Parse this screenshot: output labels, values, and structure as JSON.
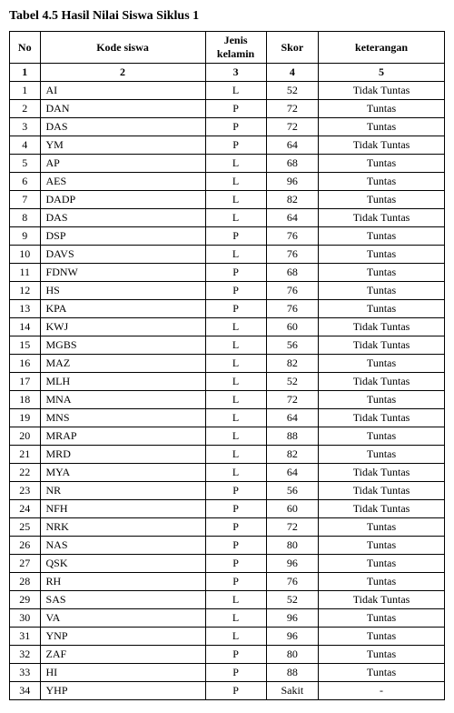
{
  "title": "Tabel 4.5 Hasil Nilai Siswa Siklus 1",
  "headers": {
    "no": "No",
    "kode": "Kode siswa",
    "jk": "Jenis kelamin",
    "skor": "Skor",
    "ket": "keterangan"
  },
  "num_row": {
    "c1": "1",
    "c2": "2",
    "c3": "3",
    "c4": "4",
    "c5": "5"
  },
  "rows": [
    {
      "no": "1",
      "kode": "AI",
      "jk": "L",
      "skor": "52",
      "ket": "Tidak Tuntas"
    },
    {
      "no": "2",
      "kode": "DAN",
      "jk": "P",
      "skor": "72",
      "ket": "Tuntas"
    },
    {
      "no": "3",
      "kode": "DAS",
      "jk": "P",
      "skor": "72",
      "ket": "Tuntas"
    },
    {
      "no": "4",
      "kode": "YM",
      "jk": "P",
      "skor": "64",
      "ket": "Tidak Tuntas"
    },
    {
      "no": "5",
      "kode": "AP",
      "jk": "L",
      "skor": "68",
      "ket": "Tuntas"
    },
    {
      "no": "6",
      "kode": "AES",
      "jk": "L",
      "skor": "96",
      "ket": "Tuntas"
    },
    {
      "no": "7",
      "kode": "DADP",
      "jk": "L",
      "skor": "82",
      "ket": "Tuntas"
    },
    {
      "no": "8",
      "kode": "DAS",
      "jk": "L",
      "skor": "64",
      "ket": "Tidak Tuntas"
    },
    {
      "no": "9",
      "kode": "DSP",
      "jk": "P",
      "skor": "76",
      "ket": "Tuntas"
    },
    {
      "no": "10",
      "kode": "DAVS",
      "jk": "L",
      "skor": "76",
      "ket": "Tuntas"
    },
    {
      "no": "11",
      "kode": "FDNW",
      "jk": "P",
      "skor": "68",
      "ket": "Tuntas"
    },
    {
      "no": "12",
      "kode": "HS",
      "jk": "P",
      "skor": "76",
      "ket": "Tuntas"
    },
    {
      "no": "13",
      "kode": "KPA",
      "jk": "P",
      "skor": "76",
      "ket": "Tuntas"
    },
    {
      "no": "14",
      "kode": "KWJ",
      "jk": "L",
      "skor": "60",
      "ket": "Tidak Tuntas"
    },
    {
      "no": "15",
      "kode": "MGBS",
      "jk": "L",
      "skor": "56",
      "ket": "Tidak Tuntas"
    },
    {
      "no": "16",
      "kode": "MAZ",
      "jk": "L",
      "skor": "82",
      "ket": "Tuntas"
    },
    {
      "no": "17",
      "kode": "MLH",
      "jk": "L",
      "skor": "52",
      "ket": "Tidak Tuntas"
    },
    {
      "no": "18",
      "kode": "MNA",
      "jk": "L",
      "skor": "72",
      "ket": "Tuntas"
    },
    {
      "no": "19",
      "kode": "MNS",
      "jk": "L",
      "skor": "64",
      "ket": "Tidak Tuntas"
    },
    {
      "no": "20",
      "kode": "MRAP",
      "jk": "L",
      "skor": "88",
      "ket": "Tuntas"
    },
    {
      "no": "21",
      "kode": "MRD",
      "jk": "L",
      "skor": "82",
      "ket": "Tuntas"
    },
    {
      "no": "22",
      "kode": "MYA",
      "jk": "L",
      "skor": "64",
      "ket": "Tidak Tuntas"
    },
    {
      "no": "23",
      "kode": "NR",
      "jk": "P",
      "skor": "56",
      "ket": "Tidak Tuntas"
    },
    {
      "no": "24",
      "kode": "NFH",
      "jk": "P",
      "skor": "60",
      "ket": "Tidak Tuntas"
    },
    {
      "no": "25",
      "kode": "NRK",
      "jk": "P",
      "skor": "72",
      "ket": "Tuntas"
    },
    {
      "no": "26",
      "kode": "NAS",
      "jk": "P",
      "skor": "80",
      "ket": "Tuntas"
    },
    {
      "no": "27",
      "kode": "QSK",
      "jk": "P",
      "skor": "96",
      "ket": "Tuntas"
    },
    {
      "no": "28",
      "kode": "RH",
      "jk": "P",
      "skor": "76",
      "ket": "Tuntas"
    },
    {
      "no": "29",
      "kode": "SAS",
      "jk": "L",
      "skor": "52",
      "ket": "Tidak Tuntas"
    },
    {
      "no": "30",
      "kode": "VA",
      "jk": "L",
      "skor": "96",
      "ket": "Tuntas"
    },
    {
      "no": "31",
      "kode": "YNP",
      "jk": "L",
      "skor": "96",
      "ket": "Tuntas"
    },
    {
      "no": "32",
      "kode": "ZAF",
      "jk": "P",
      "skor": "80",
      "ket": "Tuntas"
    },
    {
      "no": "33",
      "kode": "HI",
      "jk": "P",
      "skor": "88",
      "ket": "Tuntas"
    },
    {
      "no": "34",
      "kode": "YHP",
      "jk": "P",
      "skor": "Sakit",
      "ket": "-"
    }
  ]
}
